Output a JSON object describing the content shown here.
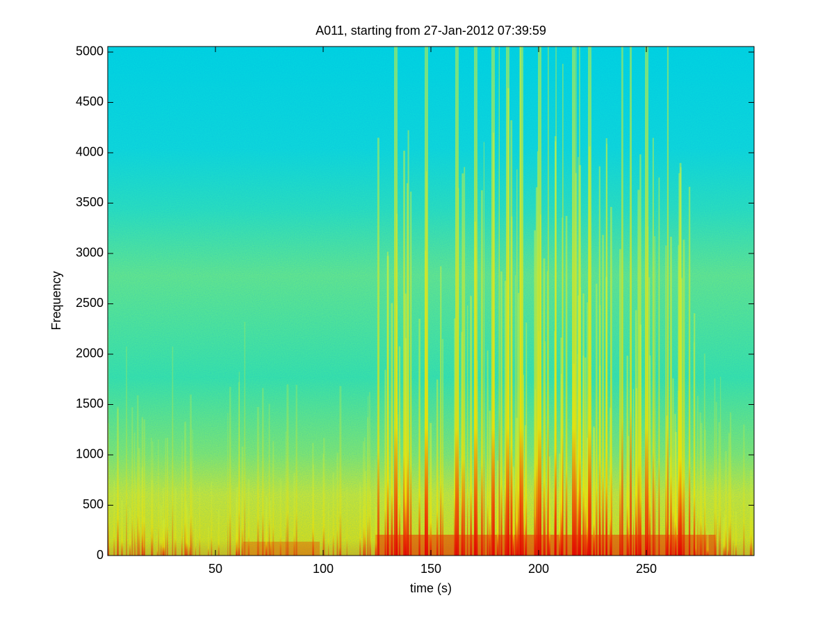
{
  "chart_data": {
    "type": "spectrogram",
    "title": "A011, starting from 27-Jan-2012 07:39:59",
    "xlabel": "time (s)",
    "ylabel": "Frequency",
    "xlim": [
      0,
      300
    ],
    "ylim": [
      0,
      5055
    ],
    "xticks": [
      50,
      100,
      150,
      200,
      250
    ],
    "yticks": [
      0,
      500,
      1000,
      1500,
      2000,
      2500,
      3000,
      3500,
      4000,
      4500,
      5000
    ],
    "colormap": "jet"
  }
}
